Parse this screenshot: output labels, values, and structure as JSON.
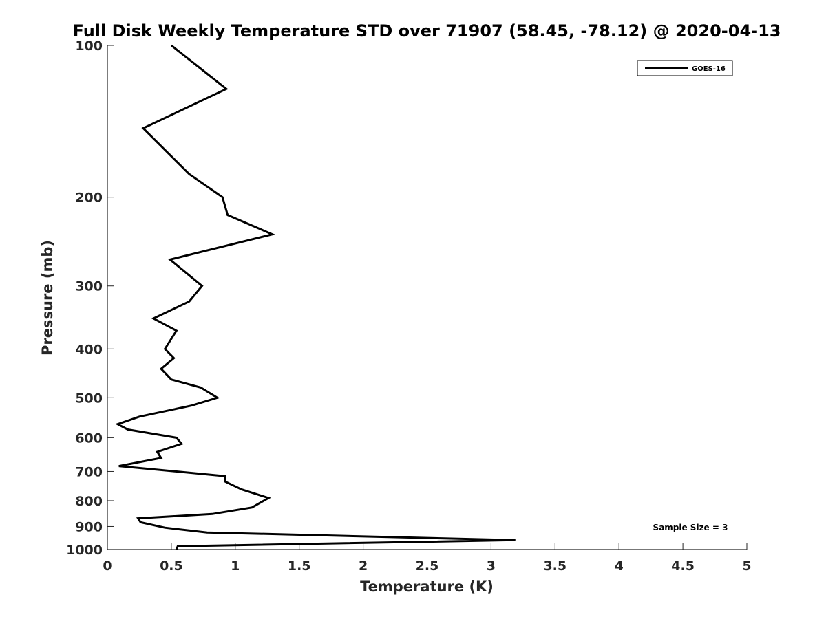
{
  "chart_data": {
    "type": "line",
    "title": "Full Disk Weekly Temperature STD over 71907 (58.45, -78.12) @ 2020-04-13",
    "xlabel": "Temperature (K)",
    "ylabel": "Pressure (mb)",
    "xlim": [
      0,
      5
    ],
    "ylim": [
      1000,
      100
    ],
    "y_scale": "log",
    "y_reversed": true,
    "x_ticks": [
      0,
      0.5,
      1,
      1.5,
      2,
      2.5,
      3,
      3.5,
      4,
      4.5,
      5
    ],
    "x_tick_labels": [
      "0",
      "0.5",
      "1",
      "1.5",
      "2",
      "2.5",
      "3",
      "3.5",
      "4",
      "4.5",
      "5"
    ],
    "y_ticks": [
      100,
      200,
      300,
      400,
      500,
      600,
      700,
      800,
      900,
      1000
    ],
    "y_tick_labels": [
      "100",
      "200",
      "300",
      "400",
      "500",
      "600",
      "700",
      "800",
      "900",
      "1000"
    ],
    "grid": false,
    "legend_position": "top-right",
    "series": [
      {
        "name": "GOES-16",
        "color": "#000000",
        "points": [
          {
            "x": 0.5,
            "p": 100
          },
          {
            "x": 0.93,
            "p": 122
          },
          {
            "x": 0.28,
            "p": 146
          },
          {
            "x": 0.64,
            "p": 180
          },
          {
            "x": 0.9,
            "p": 200
          },
          {
            "x": 0.94,
            "p": 217
          },
          {
            "x": 1.29,
            "p": 237
          },
          {
            "x": 0.49,
            "p": 266
          },
          {
            "x": 0.74,
            "p": 300
          },
          {
            "x": 0.64,
            "p": 322
          },
          {
            "x": 0.36,
            "p": 348
          },
          {
            "x": 0.54,
            "p": 368
          },
          {
            "x": 0.45,
            "p": 400
          },
          {
            "x": 0.52,
            "p": 417
          },
          {
            "x": 0.42,
            "p": 438
          },
          {
            "x": 0.5,
            "p": 460
          },
          {
            "x": 0.73,
            "p": 477
          },
          {
            "x": 0.86,
            "p": 500
          },
          {
            "x": 0.66,
            "p": 518
          },
          {
            "x": 0.25,
            "p": 545
          },
          {
            "x": 0.08,
            "p": 564
          },
          {
            "x": 0.16,
            "p": 578
          },
          {
            "x": 0.54,
            "p": 600
          },
          {
            "x": 0.58,
            "p": 617
          },
          {
            "x": 0.39,
            "p": 640
          },
          {
            "x": 0.42,
            "p": 658
          },
          {
            "x": 0.09,
            "p": 683
          },
          {
            "x": 0.92,
            "p": 715
          },
          {
            "x": 0.92,
            "p": 733
          },
          {
            "x": 1.05,
            "p": 760
          },
          {
            "x": 1.26,
            "p": 790
          },
          {
            "x": 1.13,
            "p": 825
          },
          {
            "x": 0.82,
            "p": 850
          },
          {
            "x": 0.24,
            "p": 867
          },
          {
            "x": 0.26,
            "p": 883
          },
          {
            "x": 0.45,
            "p": 905
          },
          {
            "x": 0.78,
            "p": 925
          },
          {
            "x": 3.19,
            "p": 958
          },
          {
            "x": 0.55,
            "p": 985
          },
          {
            "x": 0.54,
            "p": 1000
          }
        ]
      }
    ],
    "annotation": "Sample Size = 3"
  }
}
